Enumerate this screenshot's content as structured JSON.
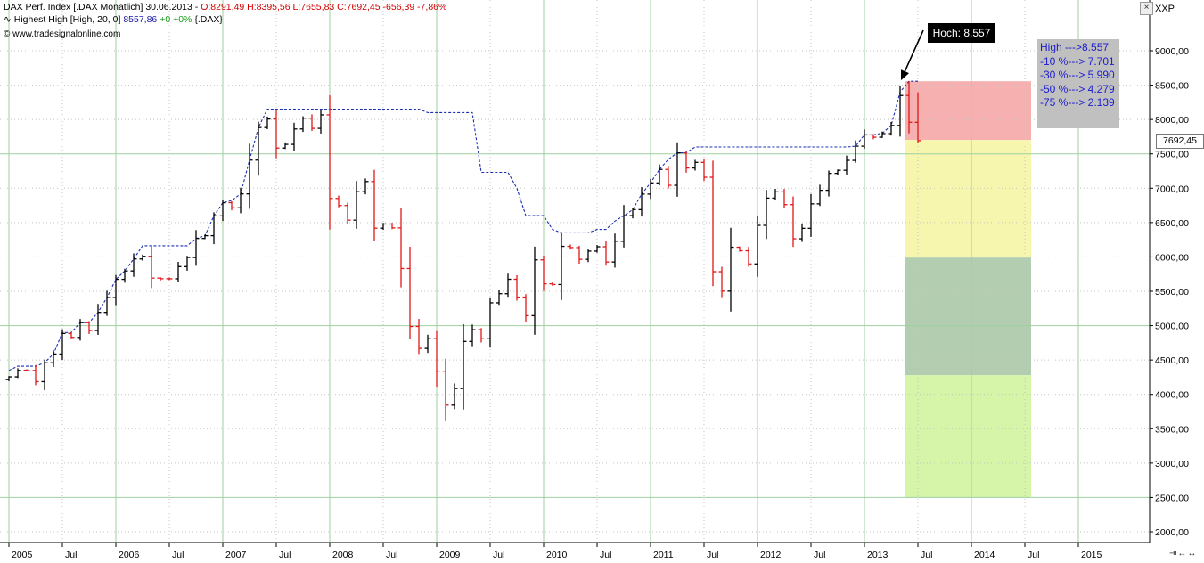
{
  "header": {
    "title_main": "DAX Perf. Index [.DAX  Monatlich] 30.06.2013 - ",
    "ohlc": "O:8291,49 H:8395,56 L:7655,83 C:7692,45 -656,39 -7,86%",
    "indicator_label": "Highest High [High, 20, 0] ",
    "indicator_value": "8557,86",
    "indicator_change": " +0 +0%",
    "indicator_symbol": " {.DAX}",
    "source": "© www.tradesignalonline.com",
    "currency": "XXP"
  },
  "callout": {
    "text": "Hoch: 8.557"
  },
  "levels_box": {
    "lines": [
      "High --->8.557",
      "-10 %---> 7.701",
      "-30 %---> 5.990",
      "-50 %---> 4.279",
      "-75 %---> 2.139"
    ]
  },
  "last_price_label": "7692,45",
  "chart_data": {
    "type": "ohlc",
    "title": "DAX Perf. Index [.DAX  Monatlich]",
    "ylim": [
      1900,
      9500
    ],
    "grid": true,
    "y_ticks": [
      {
        "value": 2000,
        "label": "2000,00"
      },
      {
        "value": 2500,
        "label": "2500,00"
      },
      {
        "value": 3000,
        "label": "3000,00"
      },
      {
        "value": 3500,
        "label": "3500,00"
      },
      {
        "value": 4000,
        "label": "4000,00"
      },
      {
        "value": 4500,
        "label": "4500,00"
      },
      {
        "value": 5000,
        "label": "5000,00"
      },
      {
        "value": 5500,
        "label": "5500,00"
      },
      {
        "value": 6000,
        "label": "6000,00"
      },
      {
        "value": 6500,
        "label": "6500,00"
      },
      {
        "value": 7000,
        "label": "7000,00"
      },
      {
        "value": 7500,
        "label": "7500,00"
      },
      {
        "value": 8000,
        "label": "8000,00"
      },
      {
        "value": 8500,
        "label": "8500,00"
      },
      {
        "value": 9000,
        "label": "9000,00"
      }
    ],
    "x_ticks": [
      {
        "date": "2005-01",
        "label": "2005"
      },
      {
        "date": "2005-07",
        "label": "Jul"
      },
      {
        "date": "2006-01",
        "label": "2006"
      },
      {
        "date": "2006-07",
        "label": "Jul"
      },
      {
        "date": "2007-01",
        "label": "2007"
      },
      {
        "date": "2007-07",
        "label": "Jul"
      },
      {
        "date": "2008-01",
        "label": "2008"
      },
      {
        "date": "2008-07",
        "label": "Jul"
      },
      {
        "date": "2009-01",
        "label": "2009"
      },
      {
        "date": "2009-07",
        "label": "Jul"
      },
      {
        "date": "2010-01",
        "label": "2010"
      },
      {
        "date": "2010-07",
        "label": "Jul"
      },
      {
        "date": "2011-01",
        "label": "2011"
      },
      {
        "date": "2011-07",
        "label": "Jul"
      },
      {
        "date": "2012-01",
        "label": "2012"
      },
      {
        "date": "2012-07",
        "label": "Jul"
      },
      {
        "date": "2013-01",
        "label": "2013"
      },
      {
        "date": "2013-07",
        "label": "Jul"
      },
      {
        "date": "2014-01",
        "label": "2014"
      },
      {
        "date": "2014-07",
        "label": "Jul"
      },
      {
        "date": "2015-01",
        "label": "2015"
      }
    ],
    "start": "2005-01",
    "closes": [
      4255,
      4350,
      4348,
      4185,
      4460,
      4587,
      4886,
      4829,
      5044,
      4929,
      5193,
      5408,
      5674,
      5796,
      5970,
      6009,
      5692,
      5683,
      5682,
      5859,
      5992,
      6269,
      6309,
      6597,
      6789,
      6715,
      6917,
      7409,
      7883,
      8007,
      7584,
      7638,
      7862,
      8019,
      7871,
      8067,
      6851,
      6748,
      6535,
      6949,
      7097,
      6418,
      6479,
      6422,
      5831,
      4988,
      4669,
      4810,
      4338,
      3843,
      4085,
      4770,
      4941,
      4809,
      5332,
      5465,
      5675,
      5415,
      5145,
      5957,
      5608,
      5598,
      6154,
      6136,
      5965,
      6084,
      6148,
      5926,
      6228,
      6601,
      6688,
      6914,
      7077,
      7273,
      7042,
      7514,
      7294,
      7376,
      7159,
      5785,
      5502,
      6141,
      6089,
      5898,
      6459,
      6856,
      6947,
      6761,
      6264,
      6416,
      6772,
      6970,
      7216,
      7261,
      7405,
      7612,
      7776,
      7742,
      7795,
      7913,
      8349,
      7959,
      7692
    ],
    "highest_high_20": [
      4350,
      4410,
      4410,
      4410,
      4460,
      4587,
      4900,
      4900,
      5044,
      5044,
      5193,
      5408,
      5674,
      5796,
      5970,
      6162,
      6162,
      6162,
      6162,
      6162,
      6162,
      6269,
      6309,
      6597,
      6789,
      6820,
      6917,
      7409,
      7883,
      8151,
      8151,
      8151,
      8151,
      8151,
      8151,
      8151,
      8151,
      8151,
      8151,
      8151,
      8151,
      8151,
      8151,
      8151,
      8151,
      8151,
      8151,
      8100,
      8100,
      8100,
      8100,
      8100,
      8100,
      7230,
      7230,
      7230,
      7230,
      7000,
      6600,
      6600,
      6600,
      6400,
      6350,
      6350,
      6350,
      6350,
      6400,
      6400,
      6520,
      6601,
      6688,
      6914,
      7077,
      7273,
      7420,
      7514,
      7514,
      7600,
      7600,
      7600,
      7600,
      7600,
      7600,
      7600,
      7600,
      7600,
      7600,
      7600,
      7600,
      7600,
      7600,
      7600,
      7600,
      7600,
      7600,
      7612,
      7776,
      7776,
      7800,
      7913,
      8400,
      8557,
      8557
    ],
    "shaded_zones": [
      {
        "from": 7701,
        "to": 8557,
        "color": "#f7b0b0"
      },
      {
        "from": 5990,
        "to": 7701,
        "color": "#f7f6ae"
      },
      {
        "from": 4279,
        "to": 5990,
        "color": "#b2cdb0"
      },
      {
        "from": 2500,
        "to": 4279,
        "color": "#d6f5a8"
      }
    ],
    "zone_start": "2013-06",
    "zone_end": "2014-06",
    "hoch_value": 8557
  }
}
